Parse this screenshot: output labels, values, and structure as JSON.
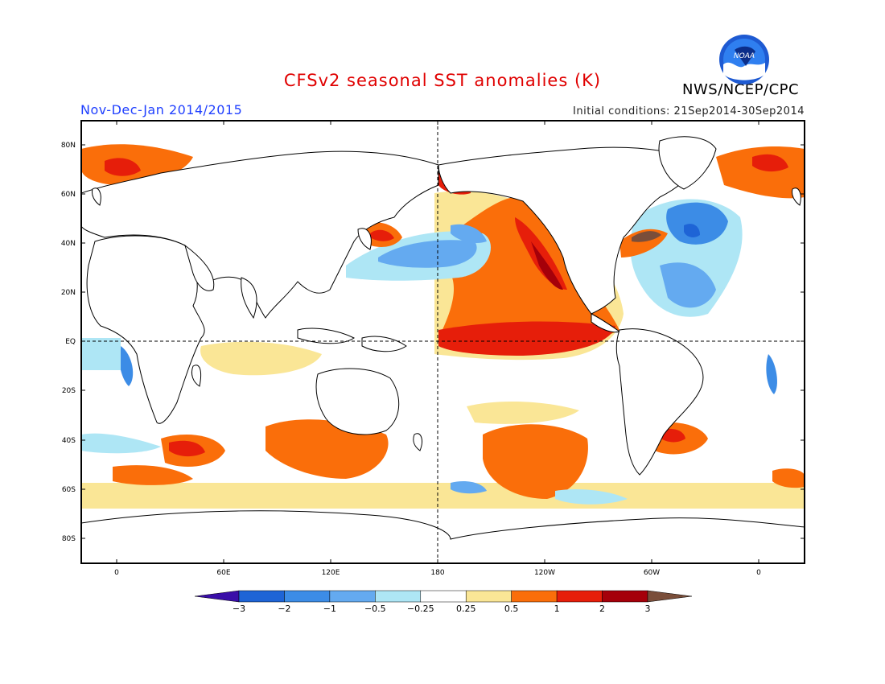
{
  "header": {
    "title": "CFSv2 seasonal SST anomalies (K)",
    "season": "Nov-Dec-Jan 2014/2015",
    "initial_conditions": "Initial conditions: 21Sep2014-30Sep2014",
    "agency": "NWS/NCEP/CPC",
    "logo_text": "NOAA"
  },
  "map": {
    "projection": "cylindrical equidistant, 0-360 longitude starting near 15W",
    "lat_ticks": [
      "80N",
      "60N",
      "40N",
      "20N",
      "EQ",
      "20S",
      "40S",
      "60S",
      "80S"
    ],
    "lon_ticks": [
      "0",
      "60E",
      "120E",
      "180",
      "120W",
      "60W",
      "0"
    ],
    "reference_lines": [
      "equator",
      "dateline"
    ]
  },
  "colorbar": {
    "levels": [
      "-3",
      "-2",
      "-1",
      "-0.5",
      "-0.25",
      "0.25",
      "0.5",
      "1",
      "2",
      "3"
    ],
    "colors": [
      "#3a0ea8",
      "#1e64d6",
      "#3c8ce6",
      "#64aaf0",
      "#aee6f5",
      "#ffffff",
      "#fae696",
      "#fa6e0a",
      "#e61e0a",
      "#a5000a",
      "#7a4e3a"
    ]
  },
  "colors": {
    "title": "#e00000",
    "season": "#2040ff",
    "land": "#ffffff",
    "coast": "#000000"
  }
}
